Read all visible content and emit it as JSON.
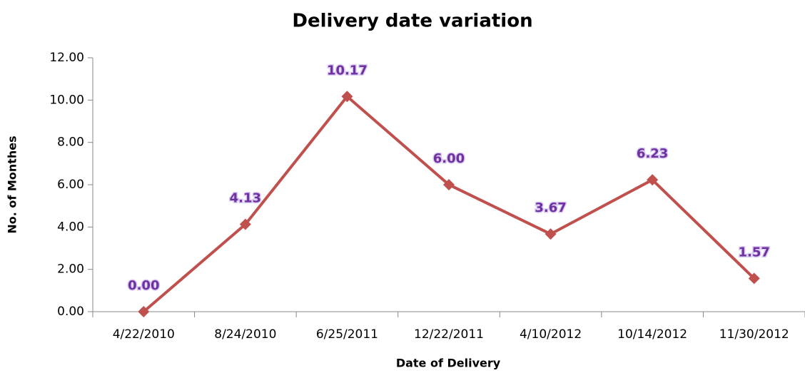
{
  "chart_data": {
    "type": "line",
    "title": "Delivery date variation",
    "x_label": "Date of Delivery",
    "y_label": "No. of Monthes",
    "categories": [
      "4/22/2010",
      "8/24/2010",
      "6/25/2011",
      "12/22/2011",
      "4/10/2012",
      "10/14/2012",
      "11/30/2012"
    ],
    "values": [
      0,
      4.13,
      10.17,
      6,
      3.67,
      6.23,
      1.57
    ],
    "value_labels": [
      "0.00",
      "4.13",
      "10.17",
      "6.00",
      "3.67",
      "6.23",
      "1.57"
    ],
    "color": "#c0504d",
    "label_color": "#7030a0",
    "ylim": [
      0,
      12
    ],
    "yticks": [
      {
        "value": 0,
        "label": "0.00"
      },
      {
        "value": 2,
        "label": "2.00"
      },
      {
        "value": 4,
        "label": "4.00"
      },
      {
        "value": 6,
        "label": "6.00"
      },
      {
        "value": 8,
        "label": "8.00"
      },
      {
        "value": 10,
        "label": "10.00"
      },
      {
        "value": 12,
        "label": "12.00"
      }
    ],
    "grid": false
  }
}
